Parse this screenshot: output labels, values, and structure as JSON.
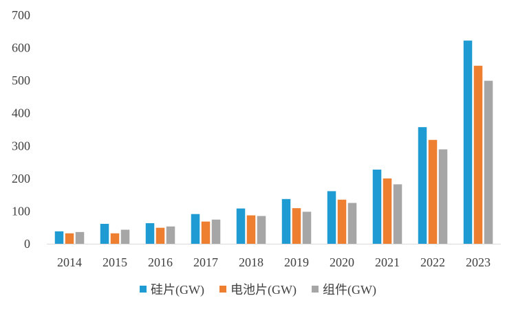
{
  "chart_data": {
    "type": "bar",
    "categories": [
      "2014",
      "2015",
      "2016",
      "2017",
      "2018",
      "2019",
      "2020",
      "2021",
      "2022",
      "2023"
    ],
    "series": [
      {
        "name": "硅片(GW)",
        "color": "#1F9BD3",
        "values": [
          38,
          61,
          63,
          91,
          108,
          137,
          161,
          227,
          357,
          622
        ]
      },
      {
        "name": "电池片(GW)",
        "color": "#EE7F31",
        "values": [
          32,
          32,
          49,
          68,
          87,
          109,
          135,
          200,
          318,
          545
        ]
      },
      {
        "name": "组件(GW)",
        "color": "#A6A6A6",
        "values": [
          36,
          43,
          53,
          74,
          85,
          98,
          125,
          182,
          289,
          499
        ]
      }
    ],
    "y_ticks": [
      0,
      100,
      200,
      300,
      400,
      500,
      600,
      700
    ],
    "ylim": [
      0,
      700
    ],
    "grid": false,
    "legend_position": "bottom"
  }
}
